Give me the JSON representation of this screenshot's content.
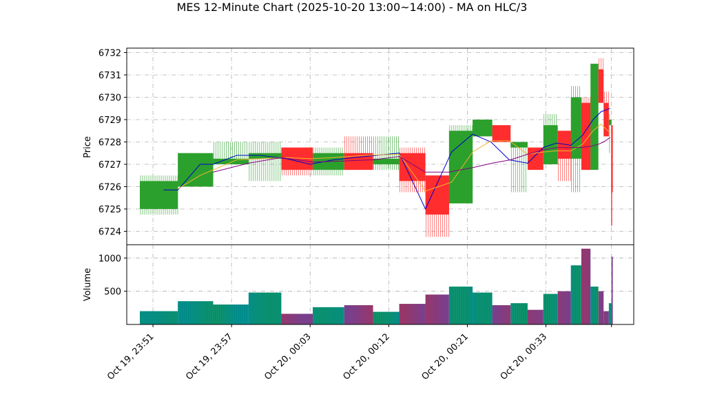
{
  "chart_data": {
    "type": "candlestick",
    "title": "MES 12-Minute Chart (2025-10-20 13:00~14:00) - MA on HLC/3",
    "price_panel": {
      "ylabel": "Price",
      "ylim": [
        6723.4,
        6732.2
      ],
      "yticks": [
        6724,
        6725,
        6726,
        6727,
        6728,
        6729,
        6730,
        6731,
        6732
      ],
      "grid": true
    },
    "volume_panel": {
      "ylabel": "Volume",
      "ylim": [
        0,
        1200
      ],
      "yticks": [
        500,
        1000
      ],
      "grid": true
    },
    "xlim": [
      -0.5,
      18.85
    ],
    "xtick_labels": [
      "Oct 19, 23:51",
      "Oct 19, 23:57",
      "Oct 20, 00:03",
      "Oct 20, 00:12",
      "Oct 20, 00:21",
      "Oct 20, 00:33"
    ],
    "xtick_positions": [
      0.5,
      3.5,
      6.5,
      9.5,
      12.5,
      15.5
    ],
    "colors": {
      "up": "#2ca02c",
      "down": "#ff2d2d",
      "vol_up": "#008b8b",
      "vol_down": "#7a3f8a",
      "ma_fast": "#0000cc",
      "ma_mid": "#f2b233",
      "ma_slow": "#800080"
    },
    "candles": [
      {
        "x": 0.0,
        "w": 1.45,
        "o": 6725.0,
        "h": 6726.5,
        "l": 6724.75,
        "c": 6726.25
      },
      {
        "x": 1.45,
        "w": 1.35,
        "o": 6726.0,
        "h": 6727.5,
        "l": 6726.0,
        "c": 6727.5
      },
      {
        "x": 2.8,
        "w": 1.35,
        "o": 6727.0,
        "h": 6728.0,
        "l": 6727.0,
        "c": 6727.25
      },
      {
        "x": 4.15,
        "w": 1.25,
        "o": 6727.25,
        "h": 6728.0,
        "l": 6726.25,
        "c": 6727.5
      },
      {
        "x": 5.4,
        "w": 1.2,
        "o": 6727.75,
        "h": 6727.75,
        "l": 6726.5,
        "c": 6726.75
      },
      {
        "x": 6.6,
        "w": 1.2,
        "o": 6726.75,
        "h": 6727.75,
        "l": 6726.5,
        "c": 6727.5
      },
      {
        "x": 7.8,
        "w": 1.1,
        "o": 6727.5,
        "h": 6728.25,
        "l": 6726.75,
        "c": 6726.75
      },
      {
        "x": 8.9,
        "w": 1.0,
        "o": 6727.0,
        "h": 6728.25,
        "l": 6726.75,
        "c": 6727.25
      },
      {
        "x": 9.9,
        "w": 1.0,
        "o": 6727.5,
        "h": 6727.75,
        "l": 6725.75,
        "c": 6726.25
      },
      {
        "x": 10.9,
        "w": 0.9,
        "o": 6726.5,
        "h": 6726.5,
        "l": 6723.75,
        "c": 6724.75
      },
      {
        "x": 11.8,
        "w": 0.9,
        "o": 6725.25,
        "h": 6728.75,
        "l": 6725.25,
        "c": 6728.5
      },
      {
        "x": 12.7,
        "w": 0.75,
        "o": 6728.25,
        "h": 6729.0,
        "l": 6728.25,
        "c": 6729.0
      },
      {
        "x": 13.45,
        "w": 0.7,
        "o": 6728.75,
        "h": 6728.75,
        "l": 6728.0,
        "c": 6728.0
      },
      {
        "x": 14.15,
        "w": 0.65,
        "o": 6727.75,
        "h": 6728.0,
        "l": 6725.75,
        "c": 6728.0
      },
      {
        "x": 14.8,
        "w": 0.6,
        "o": 6727.75,
        "h": 6727.75,
        "l": 6726.75,
        "c": 6726.75
      },
      {
        "x": 15.4,
        "w": 0.55,
        "o": 6727.0,
        "h": 6729.25,
        "l": 6727.0,
        "c": 6728.75
      },
      {
        "x": 15.95,
        "w": 0.5,
        "o": 6728.5,
        "h": 6728.5,
        "l": 6726.25,
        "c": 6727.25
      },
      {
        "x": 16.45,
        "w": 0.4,
        "o": 6727.25,
        "h": 6730.5,
        "l": 6725.75,
        "c": 6730.0
      },
      {
        "x": 16.85,
        "w": 0.35,
        "o": 6729.75,
        "h": 6730.0,
        "l": 6726.75,
        "c": 6726.75
      },
      {
        "x": 17.2,
        "w": 0.3,
        "o": 6726.75,
        "h": 6731.5,
        "l": 6726.75,
        "c": 6731.5
      },
      {
        "x": 17.5,
        "w": 0.2,
        "o": 6731.25,
        "h": 6731.75,
        "l": 6729.75,
        "c": 6729.75
      },
      {
        "x": 17.7,
        "w": 0.2,
        "o": 6729.75,
        "h": 6730.25,
        "l": 6728.25,
        "c": 6728.25
      },
      {
        "x": 17.9,
        "w": 0.1,
        "o": 6728.75,
        "h": 6729.25,
        "l": 6727.5,
        "c": 6729.0
      },
      {
        "x": 18.0,
        "w": 0.05,
        "o": 6728.75,
        "h": 6728.75,
        "l": 6724.25,
        "c": 6725.75
      }
    ],
    "volumes": [
      200,
      350,
      300,
      480,
      160,
      260,
      290,
      190,
      310,
      450,
      570,
      480,
      290,
      320,
      220,
      460,
      500,
      890,
      1140,
      570,
      500,
      200,
      320,
      1020
    ],
    "series": [
      {
        "key": "ma_fast",
        "x": [
          0.9,
          1.45,
          2.3,
          2.8,
          3.7,
          4.6,
          5.6,
          6.5,
          7.4,
          8.6,
          9.9,
          10.9,
          11.9,
          12.7,
          13.4,
          14.1,
          14.8,
          15.4,
          15.9,
          16.45,
          16.9,
          17.3,
          17.6,
          17.95
        ],
        "y": [
          6725.85,
          6725.85,
          6727.0,
          6727.0,
          6727.4,
          6727.4,
          6727.25,
          6727.0,
          6727.2,
          6727.35,
          6727.5,
          6725.0,
          6727.55,
          6728.35,
          6728.0,
          6727.2,
          6727.05,
          6727.75,
          6727.95,
          6727.85,
          6728.3,
          6729.0,
          6729.35,
          6729.5
        ]
      },
      {
        "key": "ma_mid",
        "x": [
          1.45,
          2.3,
          3.7,
          4.6,
          5.6,
          6.5,
          7.4,
          8.6,
          9.9,
          10.9,
          11.9,
          12.7,
          13.4,
          14.1,
          14.8,
          15.4,
          15.9,
          16.45,
          16.9,
          17.3,
          17.6,
          17.95
        ],
        "y": [
          6725.9,
          6726.5,
          6727.2,
          6727.25,
          6727.3,
          6727.25,
          6727.3,
          6727.4,
          6727.45,
          6725.8,
          6726.2,
          6727.55,
          6728.05,
          6728.05,
          6727.45,
          6727.55,
          6727.6,
          6727.6,
          6727.9,
          6728.5,
          6728.8,
          6728.4
        ]
      },
      {
        "key": "ma_slow",
        "x": [
          2.8,
          4.15,
          5.4,
          6.6,
          7.8,
          8.9,
          9.9,
          10.9,
          11.8,
          12.7,
          13.45,
          14.15,
          14.8,
          15.4,
          15.95,
          16.45,
          16.85,
          17.2,
          17.5,
          17.7,
          17.95
        ],
        "y": [
          6726.65,
          6727.05,
          6727.3,
          6727.1,
          6727.15,
          6727.2,
          6727.35,
          6726.65,
          6726.65,
          6726.85,
          6727.05,
          6727.2,
          6727.45,
          6727.65,
          6727.75,
          6727.75,
          6727.75,
          6727.8,
          6727.9,
          6728.0,
          6728.2
        ]
      }
    ]
  }
}
